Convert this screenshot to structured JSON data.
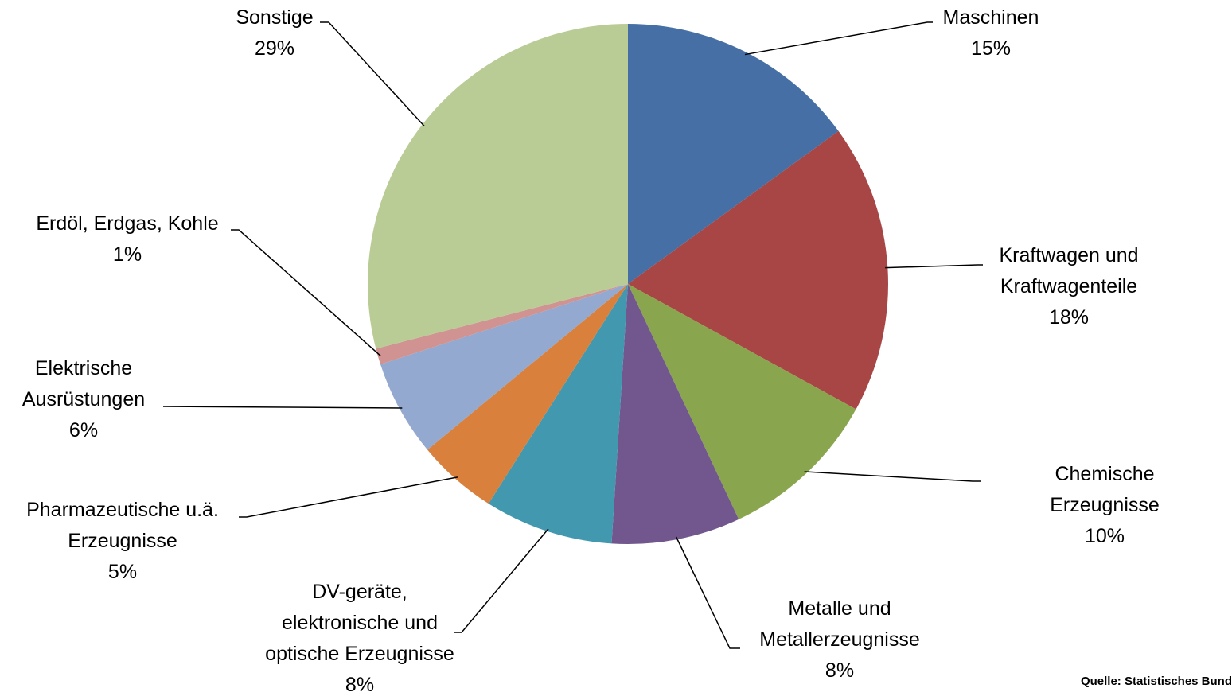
{
  "chart_data": {
    "type": "pie",
    "categories": [
      "Maschinen",
      "Kraftwagen und\nKraftwagenteile",
      "Chemische Erzeugnisse",
      "Metalle und\nMetallerzeugnisse",
      "DV-geräte,\nelektronische und\noptische Erzeugnisse",
      "Pharmazeutische u.ä.\nErzeugnisse",
      "Elektrische\nAusrüstungen",
      "Erdöl, Erdgas, Kohle",
      "Sonstige"
    ],
    "values": [
      15,
      18,
      10,
      8,
      8,
      5,
      6,
      1,
      29
    ],
    "value_labels": [
      "15%",
      "18%",
      "10%",
      "8%",
      "8%",
      "5%",
      "6%",
      "1%",
      "29%"
    ],
    "colors": [
      "#4670a5",
      "#a84645",
      "#89a64e",
      "#71578e",
      "#4298ae",
      "#d9813c",
      "#93a9cf",
      "#d09392",
      "#b9cc95"
    ],
    "source": "Quelle: Statistisches Bund"
  }
}
